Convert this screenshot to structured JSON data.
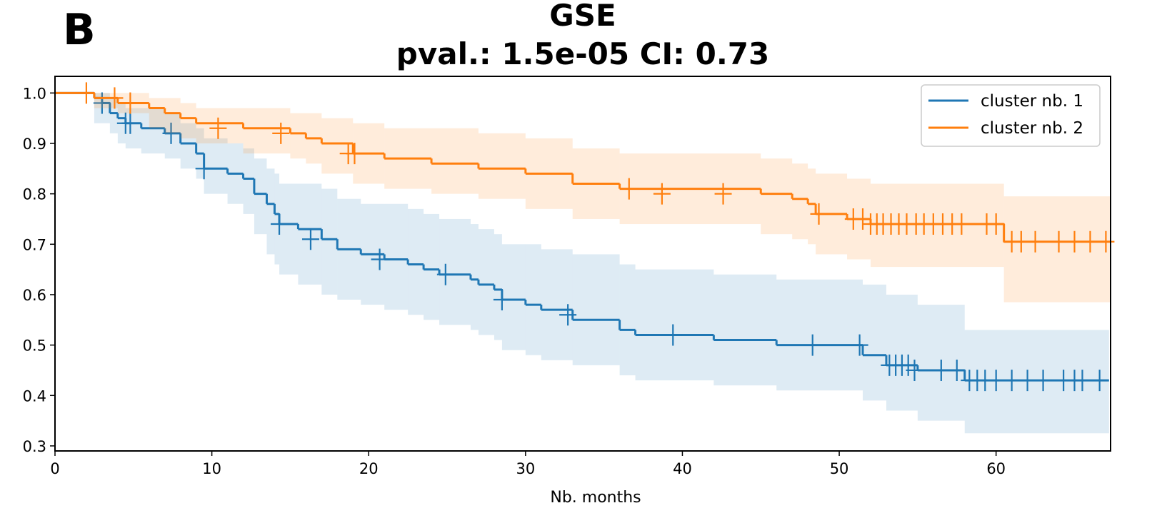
{
  "panel_label": "B",
  "chart_data": {
    "type": "survival",
    "title": "GSE",
    "subtitle": "pval.:  1.5e-05 CI:  0.73",
    "xlabel": "Nb. months",
    "xlim": [
      0,
      67.3
    ],
    "ylim": [
      0.29,
      1.033
    ],
    "xticks": [
      0,
      10,
      20,
      30,
      40,
      50,
      60
    ],
    "yticks": [
      0.3,
      0.4,
      0.5,
      0.6,
      0.7,
      0.8,
      0.9,
      {
        "value": 1,
        "label": "1.0"
      }
    ],
    "legend": "upper right",
    "series": [
      {
        "name": "cluster nb. 1",
        "color": "#1f77b4",
        "x": [
          0,
          2.5,
          3,
          3.5,
          4,
          4.5,
          5.5,
          7,
          8,
          9,
          9.5,
          11,
          12,
          12.7,
          13.5,
          14,
          14.3,
          15.5,
          17,
          18,
          19.5,
          21,
          22.5,
          23.5,
          24.5,
          26.5,
          27,
          28,
          28.5,
          30,
          31,
          33,
          36,
          37,
          42,
          46,
          51.5,
          53,
          55,
          58,
          67.2
        ],
        "values": [
          1.0,
          0.99,
          0.98,
          0.96,
          0.95,
          0.94,
          0.93,
          0.92,
          0.9,
          0.88,
          0.85,
          0.84,
          0.83,
          0.8,
          0.78,
          0.76,
          0.74,
          0.73,
          0.71,
          0.69,
          0.68,
          0.67,
          0.66,
          0.65,
          0.64,
          0.63,
          0.62,
          0.61,
          0.59,
          0.58,
          0.57,
          0.55,
          0.53,
          0.52,
          0.51,
          0.5,
          0.48,
          0.46,
          0.45,
          0.43,
          0.43
        ],
        "ci_lower": [
          1.0,
          0.94,
          0.94,
          0.92,
          0.9,
          0.89,
          0.88,
          0.87,
          0.85,
          0.83,
          0.8,
          0.78,
          0.76,
          0.72,
          0.68,
          0.66,
          0.64,
          0.62,
          0.6,
          0.59,
          0.58,
          0.57,
          0.56,
          0.55,
          0.54,
          0.53,
          0.52,
          0.51,
          0.49,
          0.48,
          0.47,
          0.46,
          0.44,
          0.43,
          0.42,
          0.41,
          0.39,
          0.37,
          0.35,
          0.325,
          0.325
        ],
        "ci_upper": [
          1.0,
          1.0,
          1.0,
          0.99,
          0.98,
          0.97,
          0.97,
          0.96,
          0.94,
          0.93,
          0.91,
          0.9,
          0.89,
          0.87,
          0.85,
          0.84,
          0.82,
          0.82,
          0.81,
          0.79,
          0.78,
          0.78,
          0.77,
          0.76,
          0.75,
          0.74,
          0.73,
          0.72,
          0.7,
          0.7,
          0.69,
          0.68,
          0.66,
          0.65,
          0.64,
          0.63,
          0.62,
          0.6,
          0.58,
          0.53,
          0.53
        ],
        "censor_x": [
          3,
          4.5,
          4.8,
          7.4,
          9.5,
          14.3,
          16.3,
          20.7,
          24.9,
          28.5,
          32.7,
          39.4,
          48.3,
          51.3,
          53.2,
          53.6,
          54,
          54.4,
          54.8,
          56.5,
          57.5,
          58.3,
          58.8,
          59.3,
          60,
          61,
          62,
          63,
          64.3,
          65,
          65.5,
          66.6
        ],
        "censor_values": [
          0.98,
          0.94,
          0.94,
          0.92,
          0.85,
          0.74,
          0.71,
          0.67,
          0.64,
          0.59,
          0.56,
          0.52,
          0.5,
          0.5,
          0.46,
          0.46,
          0.46,
          0.46,
          0.45,
          0.45,
          0.45,
          0.43,
          0.43,
          0.43,
          0.43,
          0.43,
          0.43,
          0.43,
          0.43,
          0.43,
          0.43,
          0.43
        ]
      },
      {
        "name": "cluster nb. 2",
        "color": "#ff7f0e",
        "x": [
          0,
          2.5,
          4,
          6,
          7,
          8,
          9,
          12,
          15,
          16,
          17,
          19,
          21,
          24,
          27,
          30,
          33,
          36,
          45,
          47,
          48,
          48.5,
          50.5,
          52,
          60.5,
          67.3
        ],
        "values": [
          1.0,
          0.99,
          0.98,
          0.97,
          0.96,
          0.95,
          0.94,
          0.93,
          0.92,
          0.91,
          0.9,
          0.88,
          0.87,
          0.86,
          0.85,
          0.84,
          0.82,
          0.81,
          0.8,
          0.79,
          0.78,
          0.76,
          0.75,
          0.74,
          0.705,
          0.705
        ],
        "ci_lower": [
          1.0,
          0.97,
          0.96,
          0.93,
          0.92,
          0.91,
          0.9,
          0.88,
          0.87,
          0.86,
          0.84,
          0.82,
          0.81,
          0.8,
          0.79,
          0.77,
          0.75,
          0.74,
          0.72,
          0.71,
          0.7,
          0.68,
          0.67,
          0.655,
          0.585,
          0.585
        ],
        "ci_upper": [
          1.0,
          1.0,
          1.0,
          0.99,
          0.99,
          0.98,
          0.97,
          0.97,
          0.96,
          0.96,
          0.95,
          0.94,
          0.93,
          0.93,
          0.92,
          0.91,
          0.89,
          0.88,
          0.87,
          0.86,
          0.85,
          0.84,
          0.83,
          0.82,
          0.795,
          0.795
        ],
        "censor_x": [
          2,
          3.8,
          4.8,
          10.4,
          14.4,
          18.7,
          19.1,
          36.6,
          38.7,
          42.6,
          48.7,
          50.9,
          51.5,
          52,
          52.4,
          52.8,
          53.3,
          53.8,
          54.3,
          54.9,
          55.4,
          56,
          56.6,
          57.2,
          57.8,
          59.4,
          60,
          61,
          61.6,
          62.5,
          64,
          65,
          66,
          67
        ],
        "censor_values": [
          1.0,
          0.99,
          0.98,
          0.93,
          0.92,
          0.88,
          0.88,
          0.81,
          0.8,
          0.8,
          0.76,
          0.75,
          0.75,
          0.74,
          0.74,
          0.74,
          0.74,
          0.74,
          0.74,
          0.74,
          0.74,
          0.74,
          0.74,
          0.74,
          0.74,
          0.74,
          0.74,
          0.705,
          0.705,
          0.705,
          0.705,
          0.705,
          0.705,
          0.705
        ]
      }
    ]
  }
}
